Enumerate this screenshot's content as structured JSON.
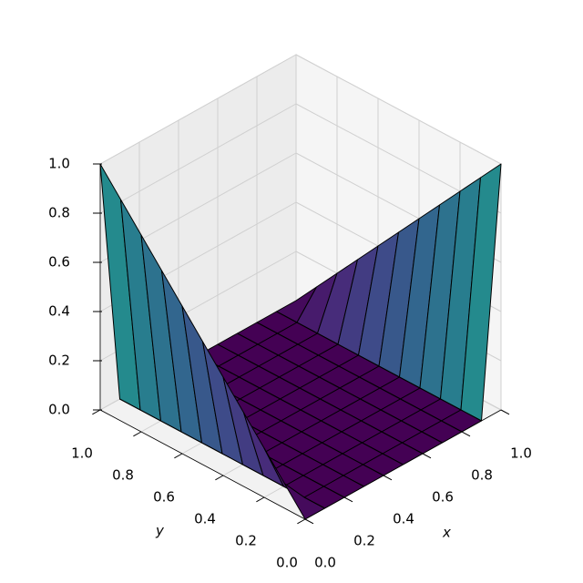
{
  "chart_data": {
    "type": "surface",
    "colormap": "viridis",
    "xlabel": "x",
    "ylabel": "y",
    "x": [
      0,
      0.1,
      0.2,
      0.3,
      0.4,
      0.5,
      0.6,
      0.7,
      0.8,
      0.9,
      1
    ],
    "y": [
      0,
      0.1,
      0.2,
      0.3,
      0.4,
      0.5,
      0.6,
      0.7,
      0.8,
      0.9,
      1
    ],
    "z": [
      [
        0,
        0,
        0,
        0,
        0,
        0,
        0,
        0,
        0,
        0,
        1
      ],
      [
        0.1,
        0,
        0,
        0,
        0,
        0,
        0,
        0,
        0,
        0,
        0.9
      ],
      [
        0.2,
        0,
        0,
        0,
        0,
        0,
        0,
        0,
        0,
        0,
        0.8
      ],
      [
        0.3,
        0,
        0,
        0,
        0,
        0,
        0,
        0,
        0,
        0,
        0.7
      ],
      [
        0.4,
        0,
        0,
        0,
        0,
        0,
        0,
        0,
        0,
        0,
        0.6
      ],
      [
        0.5,
        0,
        0,
        0,
        0,
        0,
        0,
        0,
        0,
        0,
        0.5
      ],
      [
        0.6,
        0,
        0,
        0,
        0,
        0,
        0,
        0,
        0,
        0,
        0.4
      ],
      [
        0.7,
        0,
        0,
        0,
        0,
        0,
        0,
        0,
        0,
        0,
        0.3
      ],
      [
        0.8,
        0,
        0,
        0,
        0,
        0,
        0,
        0,
        0,
        0,
        0.2
      ],
      [
        0.9,
        0,
        0,
        0,
        0,
        0,
        0,
        0,
        0,
        0,
        0.1
      ],
      [
        1,
        0,
        0,
        0,
        0,
        0,
        0,
        0,
        0,
        0,
        0
      ]
    ],
    "xlim": [
      0,
      1
    ],
    "ylim": [
      0,
      1
    ],
    "zlim": [
      0,
      1
    ],
    "xticks": [
      {
        "value": 0,
        "label": "0.0"
      },
      {
        "value": 0.2,
        "label": "0.2"
      },
      {
        "value": 0.4,
        "label": "0.4"
      },
      {
        "value": 0.6,
        "label": "0.6"
      },
      {
        "value": 0.8,
        "label": "0.8"
      },
      {
        "value": 1,
        "label": "1.0"
      }
    ],
    "yticks": [
      {
        "value": 0,
        "label": "0.0"
      },
      {
        "value": 0.2,
        "label": "0.2"
      },
      {
        "value": 0.4,
        "label": "0.4"
      },
      {
        "value": 0.6,
        "label": "0.6"
      },
      {
        "value": 0.8,
        "label": "0.8"
      },
      {
        "value": 1,
        "label": "1.0"
      }
    ],
    "zticks": [
      {
        "value": 0,
        "label": "0.0"
      },
      {
        "value": 0.2,
        "label": "0.2"
      },
      {
        "value": 0.4,
        "label": "0.4"
      },
      {
        "value": 0.6,
        "label": "0.6"
      },
      {
        "value": 0.8,
        "label": "0.8"
      },
      {
        "value": 1,
        "label": "1.0"
      }
    ],
    "grid": true
  }
}
